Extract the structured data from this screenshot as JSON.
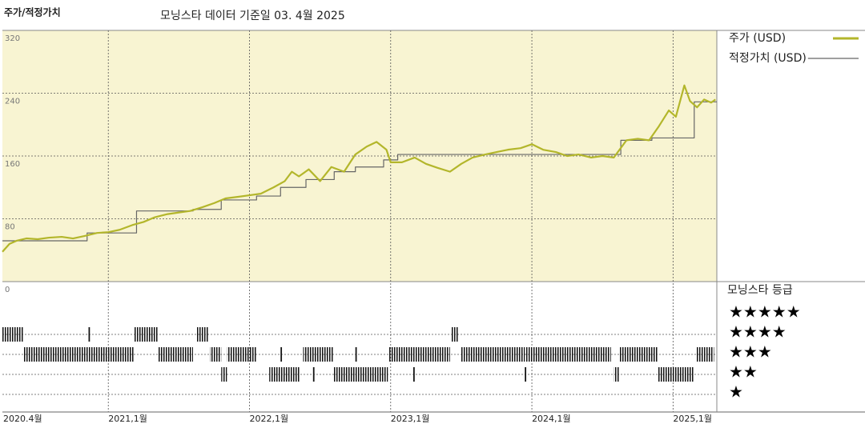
{
  "chart_data": {
    "type": "line",
    "title": "모닝스타 데이터 기준일 03. 4월 2025",
    "ylabel": "주가/적정가치",
    "xlim": [
      2020.25,
      2025.31
    ],
    "xticks": [
      {
        "value": 2020.25,
        "label": "2020.4월"
      },
      {
        "value": 2021.0,
        "label": "2021,1월"
      },
      {
        "value": 2022.0,
        "label": "2022,1월"
      },
      {
        "value": 2023.0,
        "label": "2023,1월"
      },
      {
        "value": 2024.0,
        "label": "2024,1월"
      },
      {
        "value": 2025.0,
        "label": "2025,1월"
      }
    ],
    "ylim": [
      0,
      320
    ],
    "yticks": [
      0,
      80,
      160,
      240,
      320
    ],
    "grid": true,
    "legend": "right",
    "series": [
      {
        "name": "주가 (USD)",
        "color": "#b3b62b",
        "x": [
          2020.25,
          2020.3,
          2020.35,
          2020.42,
          2020.5,
          2020.58,
          2020.67,
          2020.75,
          2020.83,
          2020.92,
          2021.0,
          2021.08,
          2021.17,
          2021.25,
          2021.33,
          2021.42,
          2021.5,
          2021.58,
          2021.67,
          2021.75,
          2021.83,
          2021.92,
          2022.0,
          2022.08,
          2022.17,
          2022.25,
          2022.3,
          2022.35,
          2022.42,
          2022.5,
          2022.58,
          2022.67,
          2022.75,
          2022.83,
          2022.9,
          2022.97,
          2023.0,
          2023.08,
          2023.17,
          2023.25,
          2023.33,
          2023.42,
          2023.5,
          2023.58,
          2023.67,
          2023.75,
          2023.83,
          2023.92,
          2024.0,
          2024.08,
          2024.17,
          2024.25,
          2024.33,
          2024.42,
          2024.5,
          2024.58,
          2024.67,
          2024.75,
          2024.83,
          2024.9,
          2024.97,
          2025.02,
          2025.08,
          2025.12,
          2025.17,
          2025.22,
          2025.27,
          2025.3
        ],
        "values": [
          38,
          48,
          52,
          55,
          54,
          56,
          57,
          55,
          58,
          62,
          63,
          66,
          72,
          76,
          82,
          86,
          88,
          90,
          95,
          100,
          106,
          108,
          110,
          112,
          120,
          128,
          140,
          134,
          143,
          128,
          146,
          140,
          162,
          172,
          178,
          168,
          152,
          152,
          158,
          150,
          145,
          140,
          150,
          158,
          162,
          165,
          168,
          170,
          175,
          168,
          165,
          160,
          162,
          158,
          160,
          158,
          180,
          182,
          180,
          198,
          218,
          210,
          250,
          230,
          222,
          232,
          228,
          232
        ]
      },
      {
        "name": "적정가치 (USD)",
        "color": "#666666",
        "step": "post",
        "x": [
          2020.25,
          2020.85,
          2021.2,
          2021.6,
          2021.8,
          2022.05,
          2022.22,
          2022.4,
          2022.6,
          2022.75,
          2022.95,
          2023.05,
          2024.63,
          2024.85,
          2025.15,
          2025.31
        ],
        "values": [
          52,
          62,
          90,
          92,
          104,
          109,
          120,
          130,
          140,
          146,
          155,
          162,
          180,
          183,
          229,
          229
        ]
      }
    ],
    "rating_title": "모닝스타 등급",
    "star_legend": [
      "★★★★★",
      "★★★★",
      "★★★",
      "★★",
      "★"
    ],
    "rating_periods": [
      {
        "stars": 4,
        "start": 2020.25,
        "end": 2020.4
      },
      {
        "stars": 3,
        "start": 2020.4,
        "end": 2021.18
      },
      {
        "stars": 4,
        "start": 2020.86,
        "end": 2020.87
      },
      {
        "stars": 4,
        "start": 2021.18,
        "end": 2021.35
      },
      {
        "stars": 3,
        "start": 2021.35,
        "end": 2021.6
      },
      {
        "stars": 4,
        "start": 2021.62,
        "end": 2021.71
      },
      {
        "stars": 3,
        "start": 2021.72,
        "end": 2021.8
      },
      {
        "stars": 2,
        "start": 2021.8,
        "end": 2021.84
      },
      {
        "stars": 3,
        "start": 2021.84,
        "end": 2022.05
      },
      {
        "stars": 2,
        "start": 2022.14,
        "end": 2022.36
      },
      {
        "stars": 3,
        "start": 2022.22,
        "end": 2022.23
      },
      {
        "stars": 3,
        "start": 2022.38,
        "end": 2022.59
      },
      {
        "stars": 2,
        "start": 2022.45,
        "end": 2022.46
      },
      {
        "stars": 2,
        "start": 2022.59,
        "end": 2022.98
      },
      {
        "stars": 3,
        "start": 2022.75,
        "end": 2022.76
      },
      {
        "stars": 3,
        "start": 2022.99,
        "end": 2023.42
      },
      {
        "stars": 2,
        "start": 2023.16,
        "end": 2023.17
      },
      {
        "stars": 4,
        "start": 2023.43,
        "end": 2023.48
      },
      {
        "stars": 3,
        "start": 2023.5,
        "end": 2023.95
      },
      {
        "stars": 2,
        "start": 2023.95,
        "end": 2023.96
      },
      {
        "stars": 3,
        "start": 2023.96,
        "end": 2024.56
      },
      {
        "stars": 2,
        "start": 2024.58,
        "end": 2024.62
      },
      {
        "stars": 3,
        "start": 2024.62,
        "end": 2024.89
      },
      {
        "stars": 2,
        "start": 2024.89,
        "end": 2025.15
      },
      {
        "stars": 3,
        "start": 2025.16,
        "end": 2025.29
      }
    ]
  }
}
